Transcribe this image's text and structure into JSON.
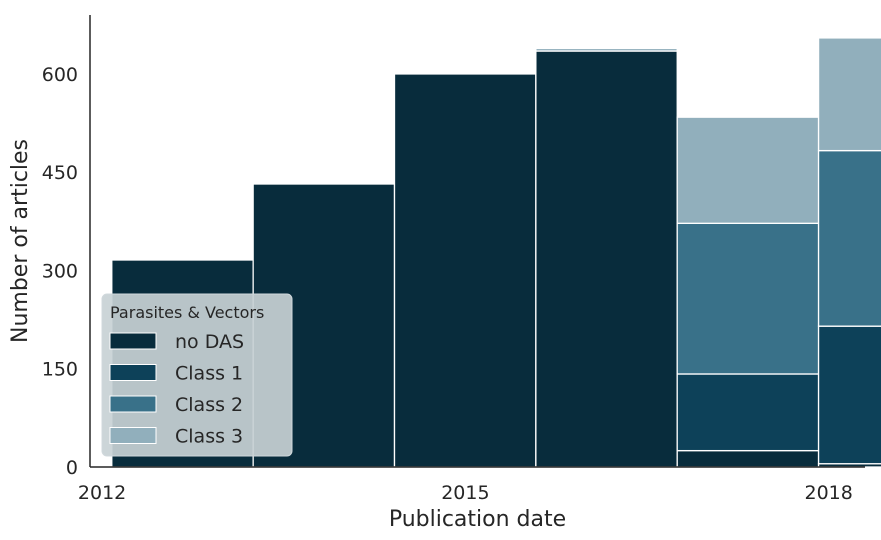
{
  "chart_data": {
    "type": "bar",
    "stacked": true,
    "categories": [
      "2012",
      "2013",
      "2014",
      "2015",
      "2016",
      "2017"
    ],
    "series": [
      {
        "name": "no DAS",
        "color": "#082c3c",
        "values": [
          316,
          432,
          600,
          635,
          25,
          5
        ]
      },
      {
        "name": "Class 1",
        "color": "#0d4159",
        "values": [
          0,
          0,
          0,
          0,
          117,
          210
        ]
      },
      {
        "name": "Class 2",
        "color": "#397189",
        "values": [
          0,
          0,
          0,
          0,
          230,
          268
        ]
      },
      {
        "name": "Class 3",
        "color": "#91afbc",
        "values": [
          0,
          0,
          0,
          4,
          162,
          172
        ]
      }
    ],
    "xlabel": "Publication date",
    "ylabel": "Number of articles",
    "xlim": [
      2011.9,
      2018.3
    ],
    "ylim": [
      0,
      690
    ],
    "x_ticks": [
      2012,
      2015,
      2018
    ],
    "x_tick_labels": [
      "2012",
      "2015",
      "2018"
    ],
    "y_ticks": [
      0,
      150,
      300,
      450,
      600
    ],
    "y_tick_labels": [
      "0",
      "150",
      "300",
      "450",
      "600"
    ],
    "grid": false,
    "legend": {
      "title": "Parasites & Vectors",
      "placement": "lower-left",
      "entries": [
        "no DAS",
        "Class 1",
        "Class 2",
        "Class 3"
      ]
    }
  }
}
